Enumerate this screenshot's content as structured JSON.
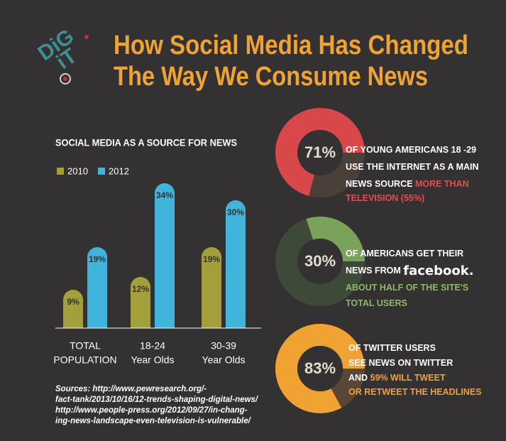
{
  "logo": [
    "DiG",
    "iT"
  ],
  "title": [
    "How Social Media Has Changed",
    "The Way We Consume News"
  ],
  "chart_data": {
    "type": "bar",
    "title": "SOCIAL MEDIA  AS A SOURCE FOR NEWS",
    "categories": [
      [
        "TOTAL",
        "POPULATION"
      ],
      [
        "18-24",
        "Year Olds"
      ],
      [
        "30-39",
        "Year Olds"
      ]
    ],
    "series": [
      {
        "name": "2010",
        "color": "#a3a03b",
        "values": [
          9,
          12,
          19
        ],
        "value_labels": [
          "9%",
          "12%",
          "19%"
        ]
      },
      {
        "name": "2012",
        "color": "#40b4da",
        "values": [
          19,
          34,
          30
        ],
        "value_labels": [
          "19%",
          "34%",
          "30%"
        ]
      }
    ]
  },
  "donuts": [
    {
      "type": "pie",
      "value": 71,
      "value_label": "71%",
      "color": "#d8474a",
      "rest_color": "#4b3f39",
      "lines": [
        [
          {
            "text": "OF YOUNG AMERICANS 18 -29",
            "color": "#ffffff"
          }
        ],
        [
          {
            "text": "USE THE INTERNET AS A MAIN",
            "color": "#ffffff"
          }
        ],
        [
          {
            "text": "NEWS SOURCE ",
            "color": "#ffffff"
          },
          {
            "text": "MORE THAN",
            "color": "#e0504f"
          }
        ],
        [
          {
            "text": "TELEVISION (55%)",
            "color": "#e0504f"
          }
        ]
      ]
    },
    {
      "type": "pie",
      "value": 30,
      "value_label": "30%",
      "color": "#7aa25a",
      "rest_color": "#3e4a38",
      "lines": [
        [
          {
            "text": "OF AMERICANS GET THEIR",
            "color": "#ffffff"
          }
        ],
        [
          {
            "text": "NEWS FROM ",
            "color": "#ffffff"
          },
          {
            "text": "facebook.",
            "color": "#ffffff",
            "brand": true
          }
        ],
        [
          {
            "text": "ABOUT HALF OF THE SITE'S",
            "color": "#8fb86a"
          }
        ],
        [
          {
            "text": "TOTAL USERS",
            "color": "#8fb86a"
          }
        ]
      ]
    },
    {
      "type": "pie",
      "value": 83,
      "value_label": "83%",
      "color": "#f0a232",
      "rest_color": "#5a4536",
      "lines": [
        [
          {
            "text": "OF TWITTER USERS",
            "color": "#ffffff"
          }
        ],
        [
          {
            "text": "SEE NEWS ON TWITTER",
            "color": "#ffffff"
          }
        ],
        [
          {
            "text": "AND ",
            "color": "#ffffff"
          },
          {
            "text": "59% WILL TWEET",
            "color": "#f0a232"
          }
        ],
        [
          {
            "text": "OR RETWEET THE HEADLINES",
            "color": "#f0a232"
          }
        ]
      ]
    }
  ],
  "sources": [
    "Sources: http://www.pewresearch.org/-",
    "fact-tank/2013/10/16/12-trends-shaping-digital-news/",
    "http://www.people-press.org/2012/09/27/in-chang-",
    "ing-news-landscape-even-television-is-vulnerable/"
  ]
}
